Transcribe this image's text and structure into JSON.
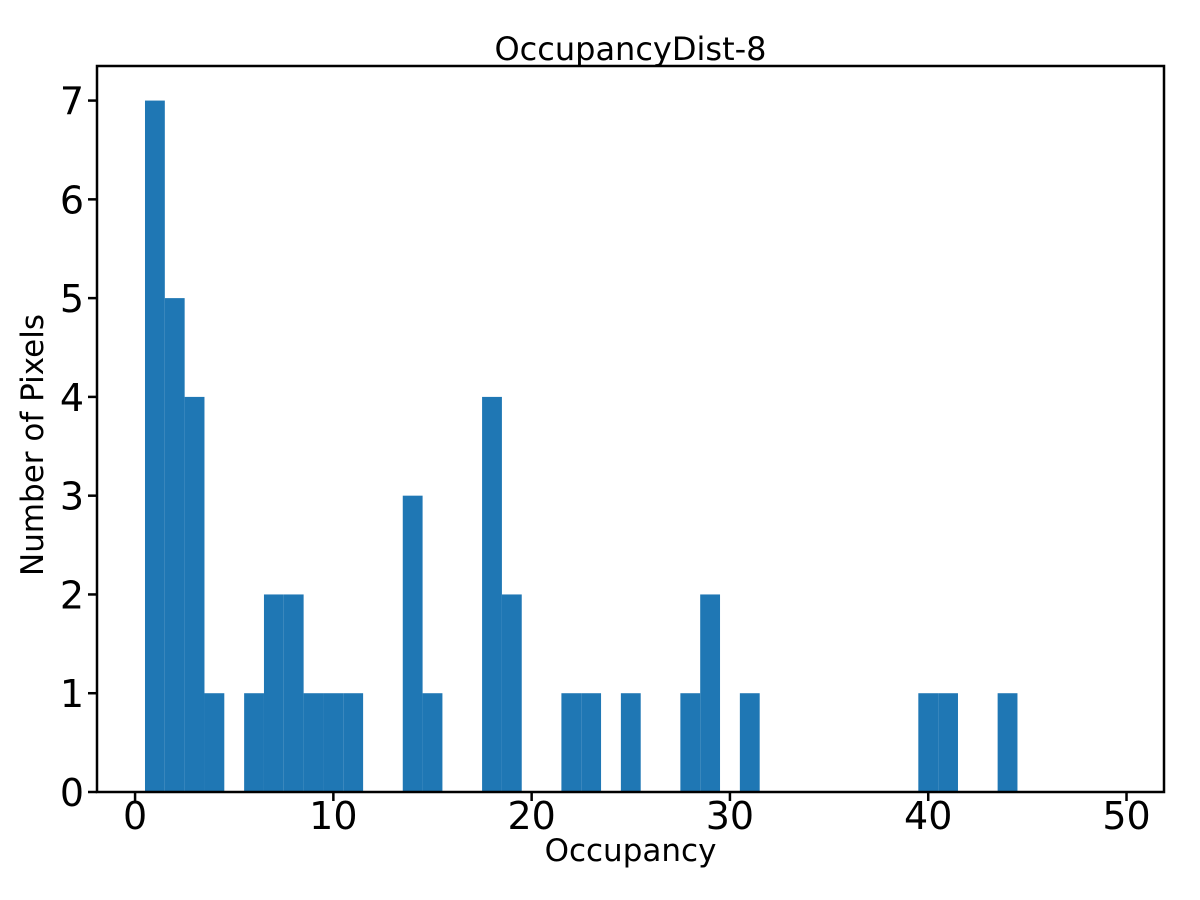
{
  "chart_data": {
    "type": "bar",
    "subtype": "histogram",
    "title": "OccupancyDist-8",
    "xlabel": "Occupancy",
    "ylabel": "Number of Pixels",
    "bar_color": "#1f77b4",
    "axis_color": "#000000",
    "background_color": "#ffffff",
    "grid": false,
    "legend_position": null,
    "bin_width": 1,
    "bin_centers": [
      1,
      2,
      3,
      4,
      6,
      7,
      8,
      9,
      10,
      11,
      14,
      15,
      18,
      19,
      22,
      23,
      25,
      28,
      29,
      31,
      40,
      41,
      44
    ],
    "counts": [
      7,
      5,
      4,
      1,
      1,
      2,
      2,
      1,
      1,
      1,
      3,
      1,
      4,
      2,
      1,
      1,
      1,
      1,
      2,
      1,
      1,
      1,
      1
    ],
    "x_ticks": [
      0,
      10,
      20,
      30,
      40,
      50
    ],
    "y_ticks": [
      0,
      1,
      2,
      3,
      4,
      5,
      6,
      7
    ],
    "xlim": [
      -1.92,
      51.89
    ],
    "ylim": [
      0,
      7.35
    ]
  }
}
